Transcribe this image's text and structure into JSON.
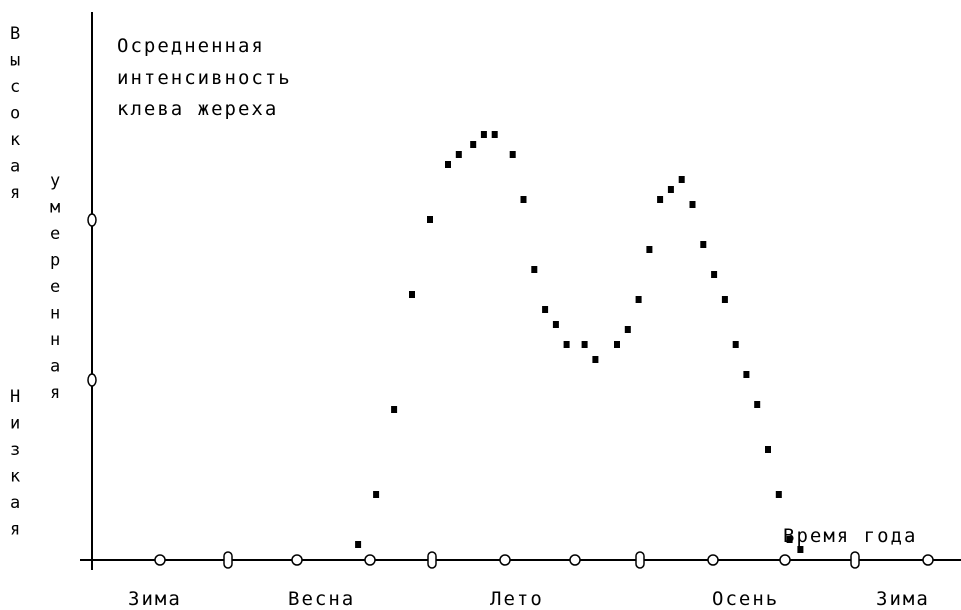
{
  "chart_data": {
    "type": "scatter",
    "title": [
      "Осредненная",
      "интенсивность",
      "клева жереха"
    ],
    "xlabel": "Время года",
    "x_categories": [
      "Зима",
      "Весна",
      "Лето",
      "Осень",
      "Зима"
    ],
    "y_levels": {
      "high": "Высокая",
      "moderate": "умеренная",
      "low": "Низкая"
    },
    "xlim": [
      0,
      12
    ],
    "ylim": [
      0,
      100
    ],
    "grid": false,
    "legend": "none",
    "series": [
      {
        "x": [
          3.7,
          3.95,
          4.2,
          4.45,
          4.7,
          4.95,
          5.1,
          5.3,
          5.45,
          5.6,
          5.85,
          6.0,
          6.15,
          6.3,
          6.45,
          6.6,
          6.85,
          7.0,
          7.3,
          7.45,
          7.6,
          7.75,
          7.9,
          8.05,
          8.2,
          8.35,
          8.5,
          8.65,
          8.8,
          8.95,
          9.1,
          9.25,
          9.4,
          9.55,
          9.7,
          9.85
        ],
        "y": [
          3,
          13,
          30,
          53,
          68,
          79,
          81,
          83,
          85,
          85,
          81,
          72,
          58,
          50,
          47,
          43,
          43,
          40,
          43,
          46,
          52,
          62,
          72,
          74,
          76,
          71,
          63,
          57,
          52,
          43,
          37,
          31,
          22,
          13,
          4,
          2
        ]
      }
    ]
  }
}
